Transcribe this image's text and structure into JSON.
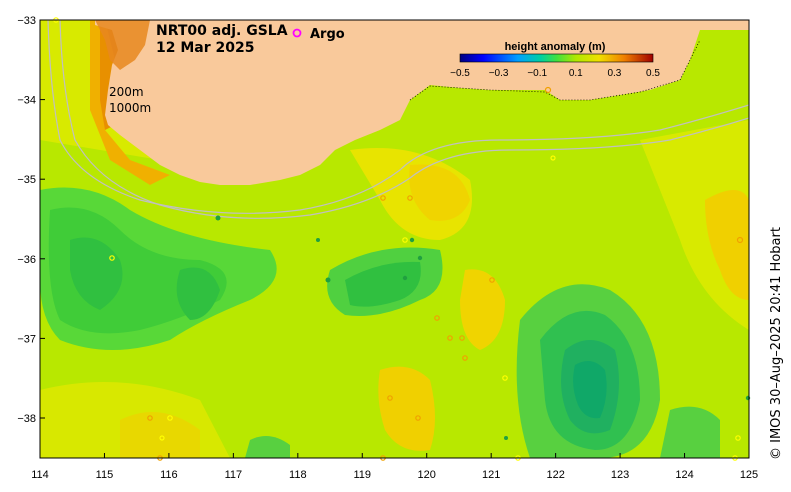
{
  "title": {
    "line1": "NRT00 adj. GSLA",
    "line2": "12 Mar 2025"
  },
  "legend": {
    "argo_label": "Argo",
    "argo_color": "#ff00ff",
    "colorbar_title": "height anomaly (m)",
    "colorbar_ticks": [
      "−0.5",
      "−0.3",
      "−0.1",
      "0.1",
      "0.3",
      "0.5"
    ]
  },
  "isobaths": {
    "label_200": "200m",
    "label_1000": "1000m"
  },
  "axes": {
    "x_ticks": [
      "114",
      "115",
      "116",
      "117",
      "118",
      "119",
      "120",
      "121",
      "122",
      "123",
      "124",
      "125"
    ],
    "y_ticks": [
      "−33",
      "−34",
      "−35",
      "−36",
      "−37",
      "−38"
    ]
  },
  "credit": "© IMOS 30–Aug–2025 20:41 Hobart",
  "colors": {
    "land": "#f9c99b",
    "deep_blue": "#1a1aa0",
    "teal": "#00c0c0",
    "green": "#40d040",
    "yellow_green": "#b8e800",
    "yellow": "#f0e000",
    "orange": "#f09000",
    "dark_orange": "#d06000",
    "red": "#a00000"
  }
}
